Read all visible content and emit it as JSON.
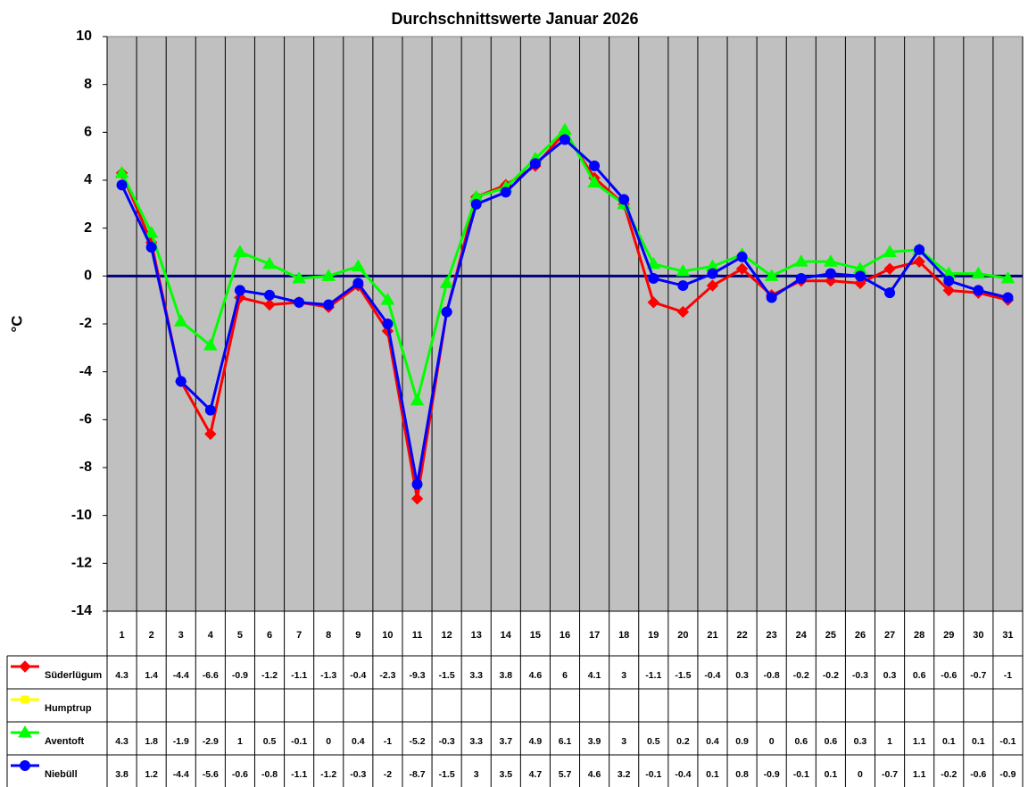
{
  "chart_data": {
    "type": "line",
    "title": "Durchschnittswerte Januar 2026",
    "y_label": "°C",
    "categories": [
      "1",
      "2",
      "3",
      "4",
      "5",
      "6",
      "7",
      "8",
      "9",
      "10",
      "11",
      "12",
      "13",
      "14",
      "15",
      "16",
      "17",
      "18",
      "19",
      "20",
      "21",
      "22",
      "23",
      "24",
      "25",
      "26",
      "27",
      "28",
      "29",
      "30",
      "31"
    ],
    "ylim": [
      -14,
      10
    ],
    "yticks": [
      -14,
      -12,
      -10,
      -8,
      -6,
      -4,
      -2,
      0,
      2,
      4,
      6,
      8,
      10
    ],
    "zero_line": true,
    "background": "#c0c0c0",
    "series": [
      {
        "name": "Süderlügum",
        "color": "#ff0000",
        "marker": "diamond",
        "values": [
          4.3,
          1.4,
          -4.4,
          -6.6,
          -0.9,
          -1.2,
          -1.1,
          -1.3,
          -0.4,
          -2.3,
          -9.3,
          -1.5,
          3.3,
          3.8,
          4.6,
          6,
          4.1,
          3,
          -1.1,
          -1.5,
          -0.4,
          0.3,
          -0.8,
          -0.2,
          -0.2,
          -0.3,
          0.3,
          0.6,
          -0.6,
          -0.7,
          -1
        ]
      },
      {
        "name": "Humptrup",
        "color": "#ffff00",
        "marker": "square",
        "values": [
          null,
          null,
          null,
          null,
          null,
          null,
          null,
          null,
          null,
          null,
          null,
          null,
          null,
          null,
          null,
          null,
          null,
          null,
          null,
          null,
          null,
          null,
          null,
          null,
          null,
          null,
          null,
          null,
          null,
          null,
          null
        ]
      },
      {
        "name": "Aventoft",
        "color": "#00ff00",
        "marker": "triangle",
        "values": [
          4.3,
          1.8,
          -1.9,
          -2.9,
          1,
          0.5,
          -0.1,
          0,
          0.4,
          -1,
          -5.2,
          -0.3,
          3.3,
          3.7,
          4.9,
          6.1,
          3.9,
          3,
          0.5,
          0.2,
          0.4,
          0.9,
          0,
          0.6,
          0.6,
          0.3,
          1,
          1.1,
          0.1,
          0.1,
          -0.1
        ]
      },
      {
        "name": "Niebüll",
        "color": "#0000ff",
        "marker": "circle",
        "values": [
          3.8,
          1.2,
          -4.4,
          -5.6,
          -0.6,
          -0.8,
          -1.1,
          -1.2,
          -0.3,
          -2,
          -8.7,
          -1.5,
          3,
          3.5,
          4.7,
          5.7,
          4.6,
          3.2,
          -0.1,
          -0.4,
          0.1,
          0.8,
          -0.9,
          -0.1,
          0.1,
          0,
          -0.7,
          1.1,
          -0.2,
          -0.6,
          -0.9
        ]
      }
    ]
  }
}
